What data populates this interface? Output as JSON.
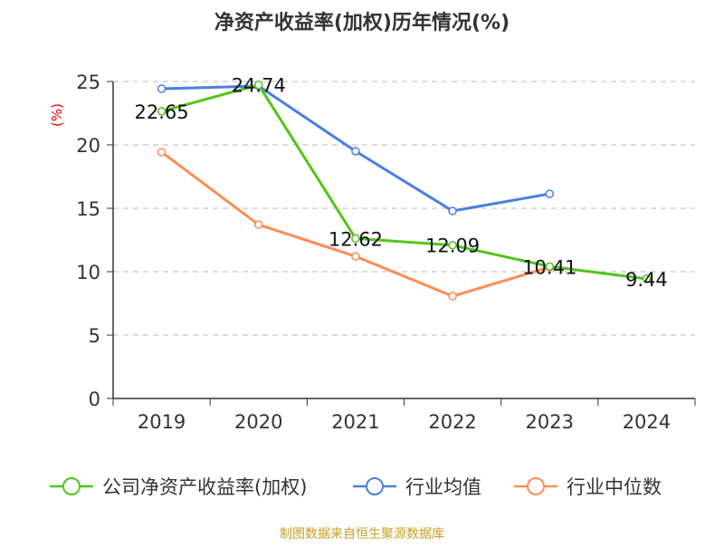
{
  "chart_data": {
    "type": "line",
    "title": "净资产收益率(加权)历年情况(%)",
    "ylabel": "(%)",
    "xlabel": "",
    "categories": [
      "2019",
      "2020",
      "2021",
      "2022",
      "2023",
      "2024"
    ],
    "ylim": [
      0,
      25
    ],
    "yticks": [
      0,
      5,
      10,
      15,
      20,
      25
    ],
    "grid": true,
    "legend_position": "bottom",
    "series": [
      {
        "name": "公司净资产收益率(加权)",
        "color": "#52c41a",
        "values": [
          22.65,
          24.74,
          12.62,
          12.09,
          10.41,
          9.44
        ],
        "labels": [
          "22.65",
          "24.74",
          "12.62",
          "12.09",
          "10.41",
          "9.44"
        ]
      },
      {
        "name": "行业均值",
        "color": "#4a7ee0",
        "values": [
          24.43,
          24.64,
          19.5,
          14.79,
          16.14,
          null
        ]
      },
      {
        "name": "行业中位数",
        "color": "#ff8c55",
        "values": [
          19.43,
          13.71,
          11.21,
          8.07,
          10.36,
          null
        ]
      }
    ],
    "source": "制图数据来自恒生聚源数据库"
  }
}
